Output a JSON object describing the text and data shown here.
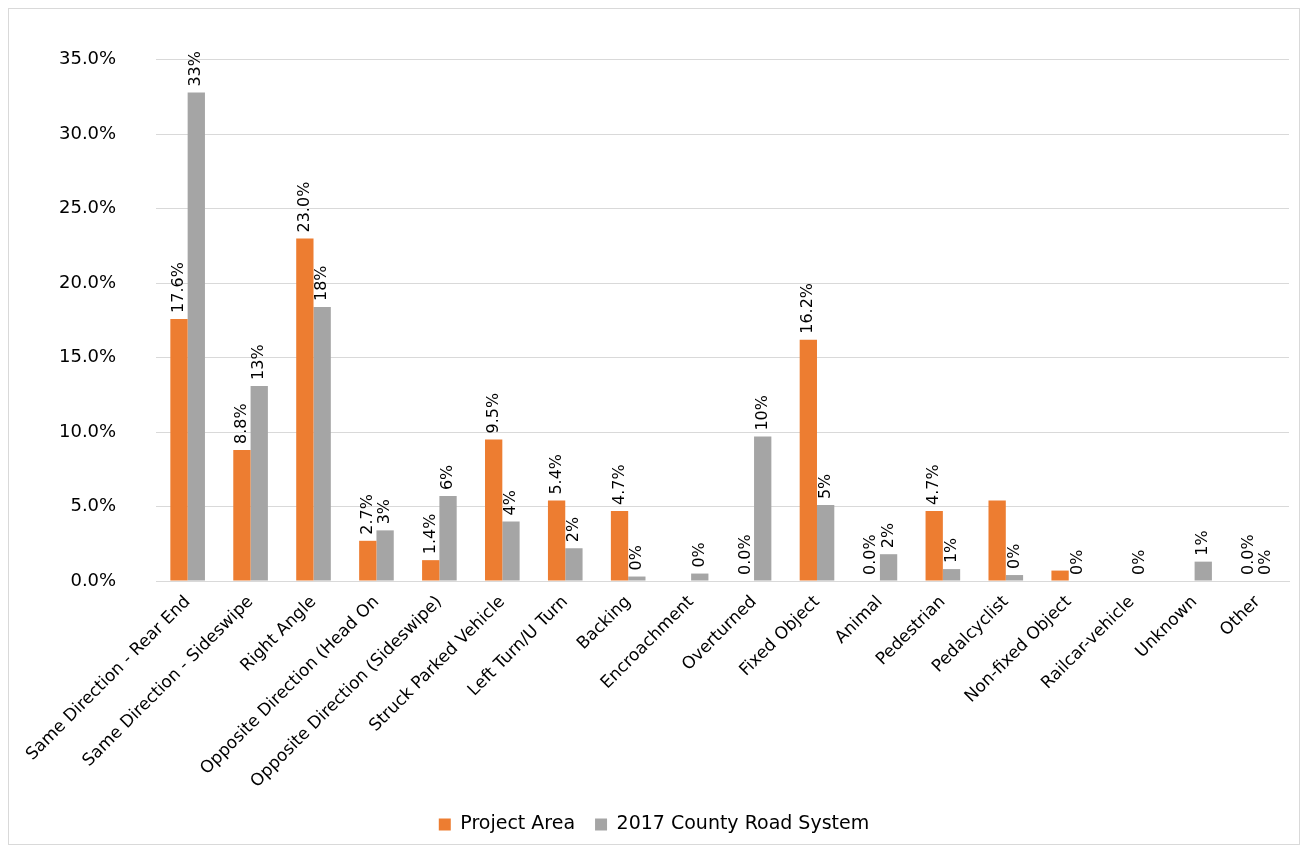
{
  "chart_data": {
    "type": "bar",
    "categories": [
      "Same Direction - Rear End",
      "Same Direction - Sideswipe",
      "Right Angle",
      "Opposite Direction (Head On",
      "Opposite Direction (Sideswipe)",
      "Struck Parked Vehicle",
      "Left Turn/U Turn",
      "Backing",
      "Encroachment",
      "Overturned",
      "Fixed Object",
      "Animal",
      "Pedestrian",
      "Pedalcyclist",
      "Non-fixed Object",
      "Railcar-vehicle",
      "Unknown",
      "Other"
    ],
    "series": [
      {
        "name": "Project Area",
        "color": "#ed7d31",
        "values": [
          17.6,
          8.8,
          23.0,
          2.7,
          1.4,
          9.5,
          5.4,
          4.7,
          0,
          0.0,
          16.2,
          0.0,
          4.7,
          5.4,
          0.7,
          0,
          0,
          0.0
        ],
        "value_labels": [
          "17.6%",
          "8.8%",
          "23.0%",
          "2.7%",
          "1.4%",
          "9.5%",
          "5.4%",
          "4.7%",
          null,
          "0.0%",
          "16.2%",
          "0.0%",
          "4.7%",
          null,
          null,
          null,
          null,
          "0.0%"
        ]
      },
      {
        "name": "2017 County Road System",
        "color": "#a5a5a5",
        "values": [
          32.8,
          13.1,
          18.4,
          3.4,
          5.7,
          4.0,
          2.2,
          0.3,
          0.5,
          9.7,
          5.1,
          1.8,
          0.8,
          0.4,
          0,
          0,
          1.3,
          0
        ],
        "value_labels": [
          "33%",
          "13%",
          "18%",
          "3%",
          "6%",
          "4%",
          "2%",
          "0%",
          "0%",
          "10%",
          "5%",
          "2%",
          "1%",
          "0%",
          "0%",
          "0%",
          "1%",
          "0%"
        ]
      }
    ],
    "ylim": [
      0,
      35
    ],
    "yticks": [
      {
        "value": 0,
        "label": "0.0%"
      },
      {
        "value": 5,
        "label": "5.0%"
      },
      {
        "value": 10,
        "label": "10.0%"
      },
      {
        "value": 15,
        "label": "15.0%"
      },
      {
        "value": 20,
        "label": "20.0%"
      },
      {
        "value": 25,
        "label": "25.0%"
      },
      {
        "value": 30,
        "label": "30.0%"
      },
      {
        "value": 35,
        "label": "35.0%"
      }
    ],
    "grid": "y",
    "legend": "bottom"
  }
}
